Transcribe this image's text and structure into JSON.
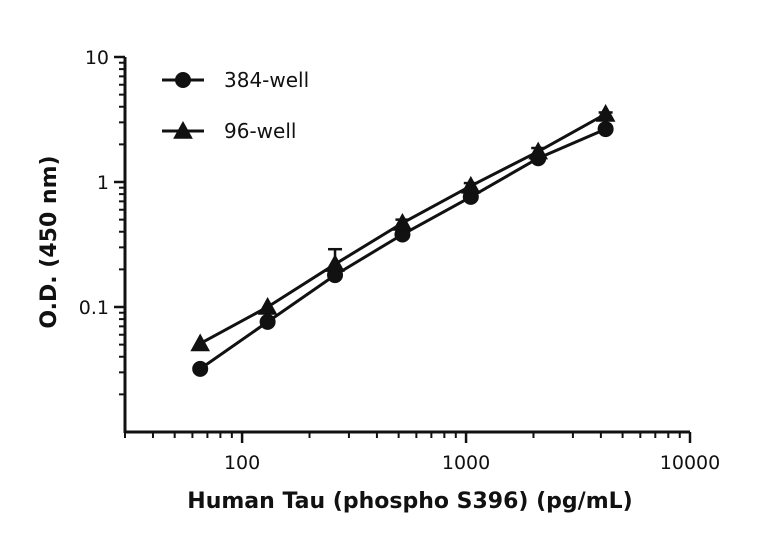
{
  "chart_data": {
    "type": "line",
    "x_scale": "log",
    "y_scale": "log",
    "xlabel": "Human Tau (phospho S396) (pg/mL)",
    "ylabel": "O.D. (450 nm)",
    "xlim": [
      30,
      10000
    ],
    "ylim": [
      0.01,
      10
    ],
    "x_ticks": [
      100,
      1000,
      10000
    ],
    "x_tick_labels": [
      "100",
      "1000",
      "10000"
    ],
    "y_ticks": [
      0.1,
      1,
      10
    ],
    "y_tick_labels": [
      "0.1",
      "1",
      "10"
    ],
    "legend_position": "top-left",
    "series": [
      {
        "name": "384-well",
        "marker": "circle",
        "x": [
          65,
          130,
          260,
          520,
          1050,
          2100,
          4200
        ],
        "y": [
          0.032,
          0.076,
          0.18,
          0.38,
          0.76,
          1.55,
          2.65
        ],
        "error": [
          0,
          0,
          0.02,
          0.02,
          0.04,
          0.1,
          0.1
        ]
      },
      {
        "name": "96-well",
        "marker": "triangle",
        "x": [
          65,
          130,
          260,
          520,
          1050,
          2100,
          4200
        ],
        "y": [
          0.051,
          0.1,
          0.22,
          0.47,
          0.93,
          1.75,
          3.5
        ],
        "error": [
          0,
          0,
          0.07,
          0.03,
          0.05,
          0.12,
          0.1
        ]
      }
    ]
  }
}
